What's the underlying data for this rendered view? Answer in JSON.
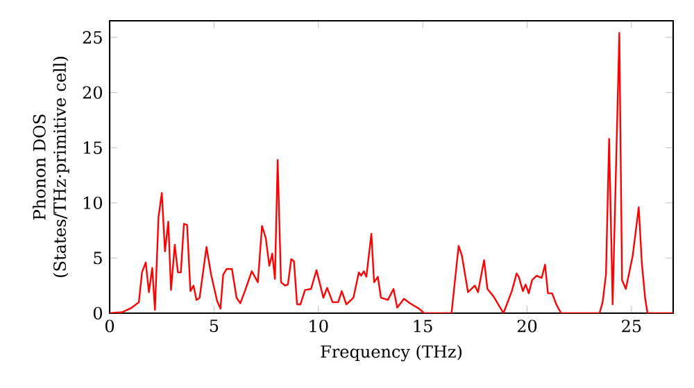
{
  "chart_data": {
    "type": "line",
    "xlabel": "Frequency (THz)",
    "ylabel": "Phonon DOS (States/THz·primitive cell)",
    "xlim": [
      0,
      27
    ],
    "ylim": [
      0,
      26.5
    ],
    "xticks": [
      0,
      5,
      10,
      15,
      20,
      25
    ],
    "yticks": [
      0,
      5,
      10,
      15,
      20,
      25
    ],
    "marker": "none",
    "line_style": "solid",
    "series": [
      {
        "color": "#ff0000",
        "x": [
          0,
          0.62,
          1.06,
          1.4,
          1.55,
          1.73,
          1.88,
          2.04,
          2.17,
          2.34,
          2.5,
          2.65,
          2.81,
          2.94,
          3.12,
          3.27,
          3.41,
          3.56,
          3.71,
          3.87,
          4.02,
          4.16,
          4.31,
          4.64,
          4.86,
          5.15,
          5.31,
          5.44,
          5.6,
          5.86,
          6.08,
          6.26,
          6.48,
          6.81,
          7.1,
          7.3,
          7.48,
          7.65,
          7.79,
          7.92,
          8.05,
          8.21,
          8.41,
          8.54,
          8.7,
          8.83,
          8.98,
          9.14,
          9.36,
          9.65,
          9.91,
          10.24,
          10.42,
          10.68,
          10.95,
          11.12,
          11.34,
          11.68,
          11.94,
          12.05,
          12.18,
          12.3,
          12.54,
          12.67,
          12.85,
          13.0,
          13.33,
          13.6,
          13.78,
          14.1,
          14.39,
          14.83,
          15.06,
          16.38,
          16.72,
          16.88,
          17.17,
          17.5,
          17.65,
          17.94,
          18.1,
          18.4,
          18.87,
          19.27,
          19.5,
          19.6,
          19.8,
          19.93,
          20.08,
          20.24,
          20.46,
          20.7,
          20.86,
          21.0,
          21.2,
          21.4,
          21.63,
          23.47,
          23.62,
          23.78,
          23.93,
          24.1,
          24.42,
          24.55,
          24.73,
          25.06,
          25.35,
          25.5,
          25.66,
          25.77,
          27
        ],
        "values": [
          0,
          0.1,
          0.5,
          1.0,
          3.7,
          4.6,
          1.9,
          4.1,
          0.3,
          8.7,
          10.9,
          5.6,
          8.3,
          2.1,
          6.2,
          3.7,
          3.7,
          8.1,
          8.0,
          2.0,
          2.5,
          1.2,
          1.4,
          6.0,
          3.5,
          1.1,
          0.4,
          3.5,
          4.0,
          4.0,
          1.4,
          0.9,
          2.0,
          3.8,
          2.8,
          7.9,
          6.8,
          4.3,
          5.4,
          3.1,
          13.9,
          2.8,
          2.5,
          2.6,
          4.9,
          4.7,
          0.8,
          0.8,
          2.1,
          2.2,
          3.9,
          1.4,
          2.3,
          1.0,
          1.0,
          2.0,
          0.8,
          1.4,
          3.7,
          3.4,
          3.8,
          3.3,
          7.2,
          2.8,
          3.3,
          1.4,
          1.2,
          2.2,
          0.5,
          1.3,
          0.9,
          0.4,
          0,
          0,
          6.1,
          5.2,
          1.9,
          2.5,
          1.9,
          4.8,
          2.2,
          1.5,
          0,
          2.0,
          3.6,
          3.3,
          2.0,
          2.6,
          1.8,
          3.0,
          3.4,
          3.2,
          4.4,
          1.8,
          1.8,
          0.8,
          0,
          0,
          1.0,
          3.5,
          15.8,
          0.8,
          25.4,
          3.0,
          2.2,
          5.2,
          9.6,
          4.5,
          1.3,
          0,
          0
        ]
      }
    ]
  }
}
